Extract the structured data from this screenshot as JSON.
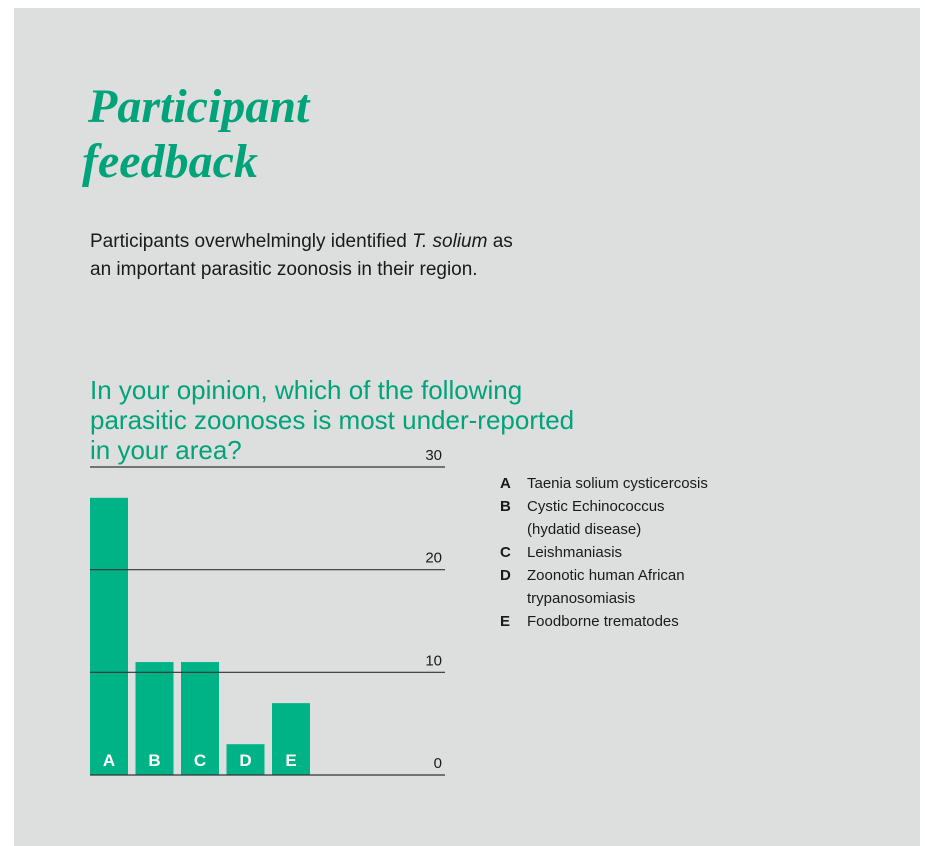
{
  "heading": [
    "Participant",
    "feedback"
  ],
  "intro": {
    "line1": [
      "Participants overwhelmingly identified ",
      "T. solium",
      " as"
    ],
    "line2": "an important parasitic zoonosis in their region."
  },
  "chart_data": {
    "type": "bar",
    "title": [
      "In your opinion, which of the following",
      "parasitic zoonoses is most under-reported",
      "in your area?"
    ],
    "categories": [
      "A",
      "B",
      "C",
      "D",
      "E"
    ],
    "values": [
      27,
      11,
      11,
      3,
      7
    ],
    "color": "#00b386",
    "ylim": [
      0,
      30
    ],
    "yticks": [
      0,
      10,
      20,
      30
    ],
    "grid": true,
    "legend": [
      [
        "Taenia solium cysticercosis"
      ],
      [
        "Cystic Echinococcus",
        "(hydatid disease)"
      ],
      [
        "Leishmaniasis"
      ],
      [
        "Zoonotic human African",
        "trypanosomiasis"
      ],
      [
        "Foodborne trematodes"
      ]
    ]
  }
}
